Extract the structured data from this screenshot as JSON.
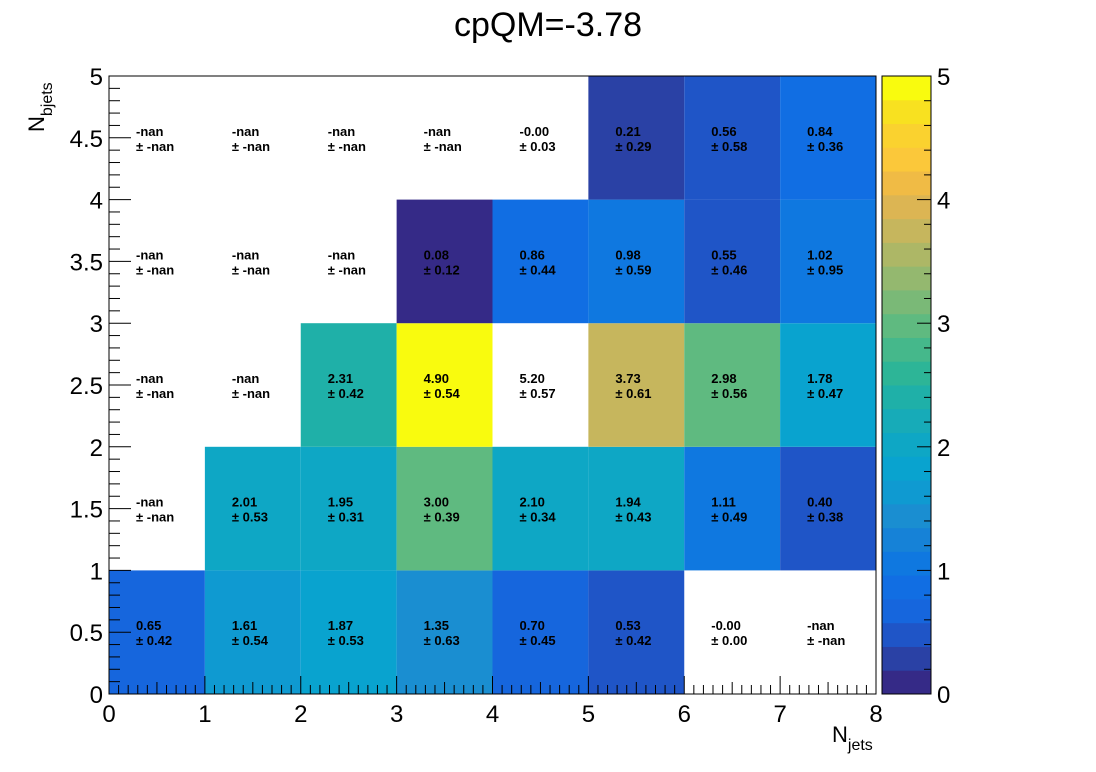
{
  "chart_data": {
    "type": "heatmap",
    "title": "cpQM=-3.78",
    "xlabel": {
      "main": "N",
      "sub": "jets"
    },
    "ylabel": {
      "main": "N",
      "sub": "bjets"
    },
    "xlim": [
      0,
      8
    ],
    "ylim": [
      0,
      5
    ],
    "zlim": [
      0,
      5
    ],
    "x_ticks": [
      "0",
      "1",
      "2",
      "3",
      "4",
      "5",
      "6",
      "7",
      "8"
    ],
    "y_ticks": [
      "0",
      "0.5",
      "1",
      "1.5",
      "2",
      "2.5",
      "3",
      "3.5",
      "4",
      "4.5",
      "5"
    ],
    "colorbar_ticks": [
      "0",
      "1",
      "2",
      "3",
      "4",
      "5"
    ],
    "colormap": [
      "#352a87",
      "#2a41a5",
      "#1f55c7",
      "#1666dd",
      "#116ee3",
      "#0f78e0",
      "#1682d7",
      "#1a8ed1",
      "#0f9ad1",
      "#09a3cf",
      "#0ea7c5",
      "#17abb8",
      "#1fb0a8",
      "#2db597",
      "#45b88b",
      "#5fba80",
      "#7ab977",
      "#94b86f",
      "#adb766",
      "#c6b65d",
      "#dcb553",
      "#f0bb45",
      "#fbc83a",
      "#fad22f",
      "#f8e120",
      "#f9fb0e"
    ],
    "rows": [
      {
        "y": "0-1",
        "cells": [
          {
            "value": "0.65",
            "error": "± 0.42"
          },
          {
            "value": "1.61",
            "error": "± 0.54"
          },
          {
            "value": "1.87",
            "error": "± 0.53"
          },
          {
            "value": "1.35",
            "error": "± 0.63"
          },
          {
            "value": "0.70",
            "error": "± 0.45"
          },
          {
            "value": "0.53",
            "error": "± 0.42"
          },
          {
            "value": "-0.00",
            "error": "± 0.00"
          },
          {
            "value": "-nan",
            "error": "± -nan"
          }
        ]
      },
      {
        "y": "1-2",
        "cells": [
          {
            "value": "-nan",
            "error": "± -nan"
          },
          {
            "value": "2.01",
            "error": "± 0.53"
          },
          {
            "value": "1.95",
            "error": "± 0.31"
          },
          {
            "value": "3.00",
            "error": "± 0.39"
          },
          {
            "value": "2.10",
            "error": "± 0.34"
          },
          {
            "value": "1.94",
            "error": "± 0.43"
          },
          {
            "value": "1.11",
            "error": "± 0.49"
          },
          {
            "value": "0.40",
            "error": "± 0.38"
          }
        ]
      },
      {
        "y": "2-3",
        "cells": [
          {
            "value": "-nan",
            "error": "± -nan"
          },
          {
            "value": "-nan",
            "error": "± -nan"
          },
          {
            "value": "2.31",
            "error": "± 0.42"
          },
          {
            "value": "4.90",
            "error": "± 0.54"
          },
          {
            "value": "5.20",
            "error": "± 0.57"
          },
          {
            "value": "3.73",
            "error": "± 0.61"
          },
          {
            "value": "2.98",
            "error": "± 0.56"
          },
          {
            "value": "1.78",
            "error": "± 0.47"
          }
        ]
      },
      {
        "y": "3-4",
        "cells": [
          {
            "value": "-nan",
            "error": "± -nan"
          },
          {
            "value": "-nan",
            "error": "± -nan"
          },
          {
            "value": "-nan",
            "error": "± -nan"
          },
          {
            "value": "0.08",
            "error": "± 0.12"
          },
          {
            "value": "0.86",
            "error": "± 0.44"
          },
          {
            "value": "0.98",
            "error": "± 0.59"
          },
          {
            "value": "0.55",
            "error": "± 0.46"
          },
          {
            "value": "1.02",
            "error": "± 0.95"
          }
        ]
      },
      {
        "y": "4-5",
        "cells": [
          {
            "value": "-nan",
            "error": "± -nan"
          },
          {
            "value": "-nan",
            "error": "± -nan"
          },
          {
            "value": "-nan",
            "error": "± -nan"
          },
          {
            "value": "-nan",
            "error": "± -nan"
          },
          {
            "value": "-0.00",
            "error": "± 0.03"
          },
          {
            "value": "0.21",
            "error": "± 0.29"
          },
          {
            "value": "0.56",
            "error": "± 0.58"
          },
          {
            "value": "0.84",
            "error": "± 0.36"
          }
        ]
      }
    ]
  }
}
